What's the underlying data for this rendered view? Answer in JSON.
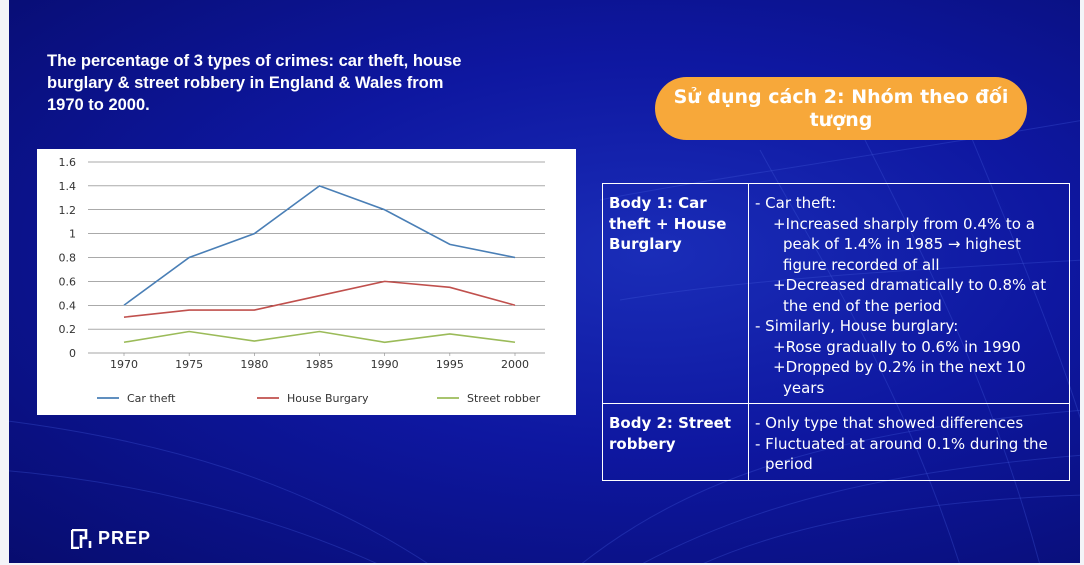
{
  "title": "The percentage of 3 types of crimes: car theft, house burglary & street robbery in England & Wales from 1970 to 2000.",
  "callout": "Sử dụng cách 2: Nhóm theo đối tượng",
  "colors": {
    "car_theft": "#4a7fb6",
    "house_burglary": "#c0504d",
    "street_robbery": "#9bbb59",
    "callout_bg": "#f7a83a"
  },
  "chart_data": {
    "type": "line",
    "title": "",
    "xlabel": "",
    "ylabel": "",
    "x": [
      "1970",
      "1975",
      "1980",
      "1985",
      "1990",
      "1995",
      "2000"
    ],
    "ylim": [
      0,
      1.6
    ],
    "yticks": [
      "0",
      "0.2",
      "0.4",
      "0.6",
      "0.8",
      "1",
      "1.2",
      "1.4",
      "1.6"
    ],
    "grid": true,
    "legend": "bottom",
    "series": [
      {
        "name": "Car theft",
        "values": [
          0.4,
          0.8,
          1.0,
          1.4,
          1.2,
          0.91,
          0.8
        ]
      },
      {
        "name": "House Burgary",
        "values": [
          0.3,
          0.36,
          0.36,
          0.48,
          0.6,
          0.55,
          0.4
        ]
      },
      {
        "name": "Street robber",
        "values": [
          0.09,
          0.18,
          0.1,
          0.18,
          0.09,
          0.16,
          0.09
        ]
      }
    ]
  },
  "table": {
    "rows": [
      {
        "heading": "Body 1: Car theft + House Burglary",
        "lines": [
          {
            "text": "- Car theft:",
            "level": 0
          },
          {
            "text": "+Increased sharply from 0.4% to a peak of 1.4% in 1985 → highest figure recorded of all",
            "level": 1
          },
          {
            "text": "+Decreased dramatically to 0.8% at the end of the period",
            "level": 1
          },
          {
            "text": "- Similarly, House burglary:",
            "level": 0
          },
          {
            "text": "+Rose gradually to 0.6% in 1990",
            "level": 1
          },
          {
            "text": "+Dropped by 0.2% in the next 10 years",
            "level": 1
          }
        ]
      },
      {
        "heading": "Body 2: Street robbery",
        "lines": [
          {
            "text": "- Only type that showed differences",
            "level": 0
          },
          {
            "text": "- Fluctuated at around 0.1% during the period",
            "level": 0
          }
        ]
      }
    ]
  },
  "brand": {
    "name": "PREP",
    "icon": "prep-logo-icon"
  }
}
